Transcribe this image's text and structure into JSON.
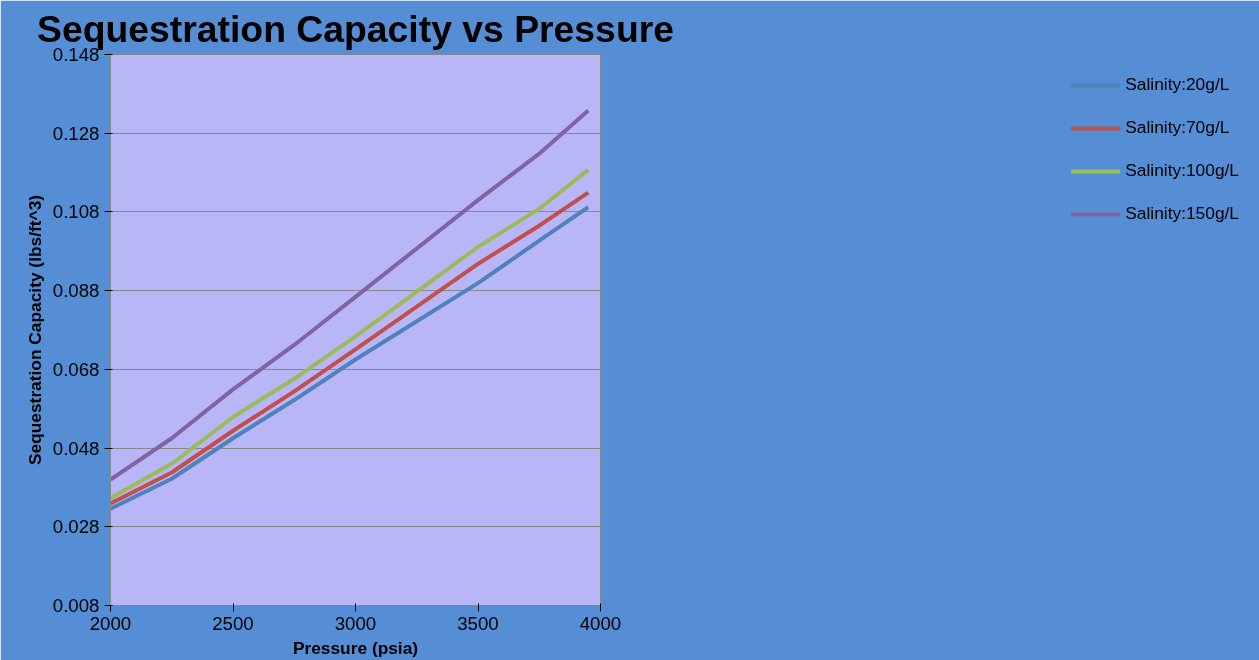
{
  "chart_data": {
    "type": "line",
    "title": "Sequestration Capacity vs Pressure",
    "xlabel": "Pressure (psia)",
    "ylabel": "Sequestration Capacity (lbs/ft^3)",
    "x": [
      2000,
      2250,
      2500,
      2750,
      3000,
      3500,
      3750,
      3950
    ],
    "series": [
      {
        "name": "Salinity:20g/L",
        "color": "#4f81bd",
        "values": [
          0.0326,
          0.0402,
          0.0505,
          0.0602,
          0.0705,
          0.0899,
          0.1007,
          0.1092
        ]
      },
      {
        "name": "Salinity:70g/L",
        "color": "#c0504d",
        "values": [
          0.0339,
          0.0418,
          0.0524,
          0.0624,
          0.0731,
          0.0948,
          0.1045,
          0.1129
        ]
      },
      {
        "name": "Salinity:100g/L",
        "color": "#9bbb59",
        "values": [
          0.0353,
          0.044,
          0.0559,
          0.0656,
          0.0764,
          0.0991,
          0.1088,
          0.1187
        ]
      },
      {
        "name": "Salinity:150g/L",
        "color": "#8064a2",
        "values": [
          0.04,
          0.0505,
          0.0629,
          0.0742,
          0.0864,
          0.111,
          0.1228,
          0.1338
        ]
      }
    ],
    "xlim": [
      2000,
      4000
    ],
    "xticks": [
      2000,
      2500,
      3000,
      3500,
      4000
    ],
    "ylim": [
      0.008,
      0.148
    ],
    "yticks": [
      0.008,
      0.028,
      0.048,
      0.068,
      0.088,
      0.108,
      0.128,
      0.148
    ],
    "grid": "y",
    "legend": "right",
    "marker": "none",
    "line_style": "solid"
  }
}
